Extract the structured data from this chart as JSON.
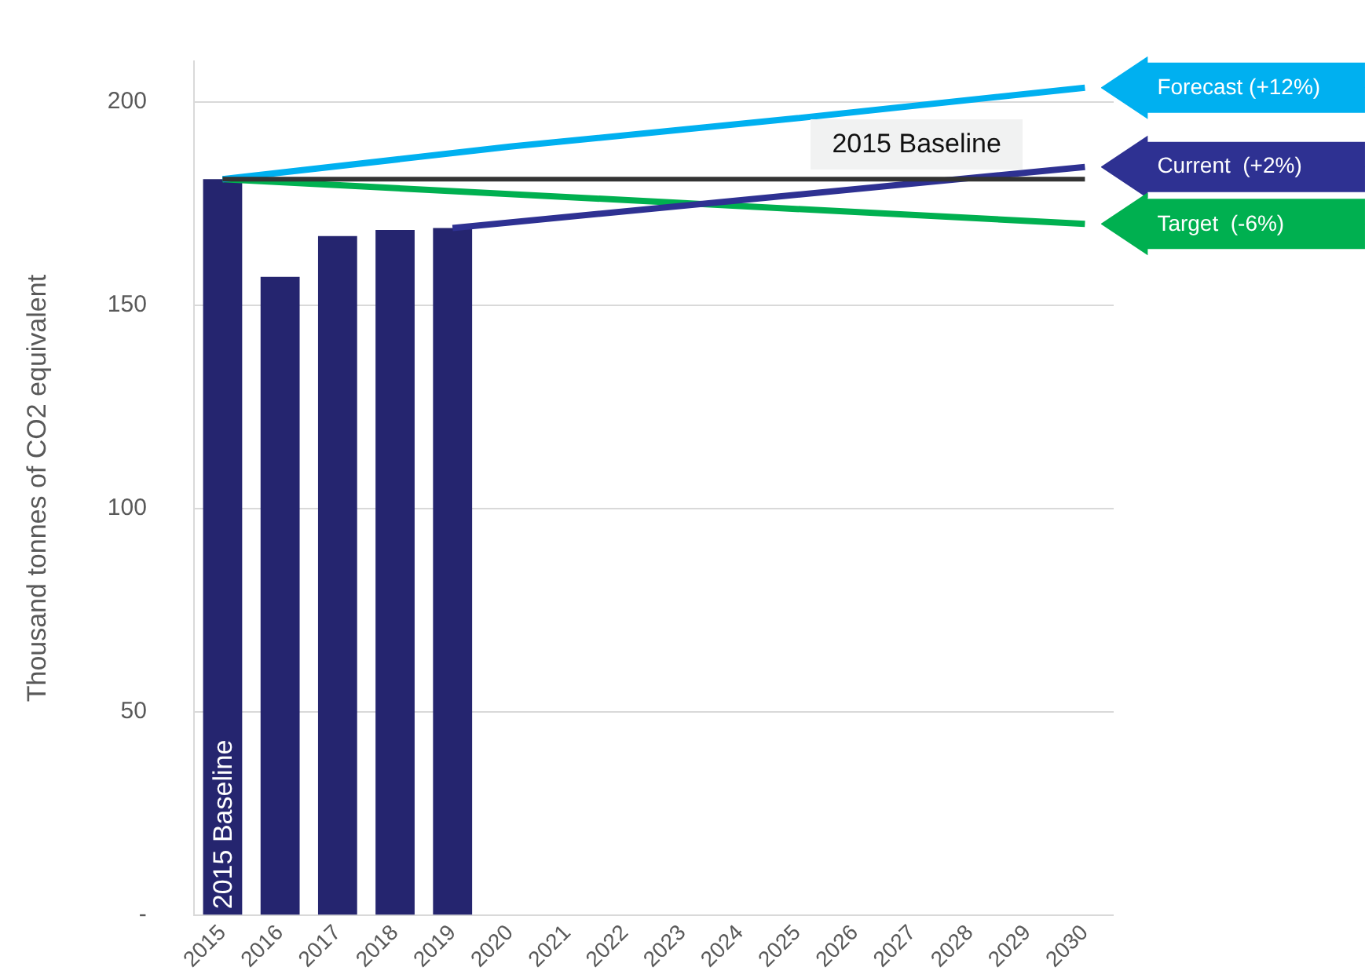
{
  "chart_data": {
    "type": "bar",
    "ylabel": "Thousand tonnes of CO2 equivalent",
    "categories": [
      "2015",
      "2016",
      "2017",
      "2018",
      "2019",
      "2020",
      "2021",
      "2022",
      "2023",
      "2024",
      "2025",
      "2026",
      "2027",
      "2028",
      "2029",
      "2030"
    ],
    "ylim": [
      0,
      210
    ],
    "yticks": [
      {
        "value": 0,
        "label": "-"
      },
      50,
      100,
      150,
      200
    ],
    "grid": "y",
    "legend": false,
    "series": [
      {
        "color": "#25256f",
        "values": [
          181,
          157,
          167,
          168.5,
          169,
          null,
          null,
          null,
          null,
          null,
          null,
          null,
          null,
          null,
          null,
          null
        ]
      },
      {
        "type": "line",
        "name": "Forecast (+12%)",
        "color": "#00b0f0",
        "values": [
          181,
          null,
          null,
          null,
          null,
          189,
          null,
          null,
          null,
          null,
          196,
          null,
          null,
          null,
          null,
          203.5
        ]
      },
      {
        "type": "line",
        "name": "Current  (+2%)",
        "color": "#2e3192",
        "values": [
          null,
          null,
          null,
          null,
          169,
          null,
          null,
          null,
          null,
          null,
          null,
          null,
          null,
          null,
          null,
          184
        ]
      },
      {
        "type": "line",
        "name": "Target  (-6%)",
        "color": "#00b050",
        "values": [
          181,
          null,
          null,
          null,
          null,
          null,
          null,
          null,
          null,
          null,
          null,
          null,
          null,
          null,
          null,
          170
        ]
      }
    ],
    "ref_lines": [
      {
        "axis": "y",
        "value": 181,
        "label": "2015 Baseline",
        "color": "#333333"
      }
    ],
    "annotations": [
      {
        "text": "2015 Baseline",
        "x": "2015",
        "y": 0
      }
    ]
  }
}
